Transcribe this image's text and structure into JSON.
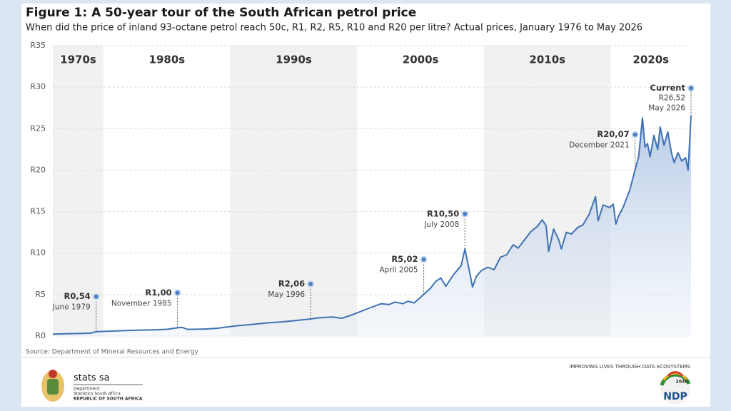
{
  "chart_data": {
    "type": "line",
    "title": "Figure 1: A 50-year tour of the South African petrol price",
    "subtitle": "When did the price of inland 93-octane petrol reach 50c, R1, R2, R5, R10 and R20 per litre? Actual prices, January 1976 to May 2026",
    "source": "Source: Department of Mineral Resources and Energy",
    "color": "#3f72b2",
    "xlim": [
      1976,
      2026.33
    ],
    "ylim": [
      0,
      35
    ],
    "yticks": [
      {
        "value": 0,
        "label": "R0"
      },
      {
        "value": 5,
        "label": "R5"
      },
      {
        "value": 10,
        "label": "R10"
      },
      {
        "value": 15,
        "label": "R15"
      },
      {
        "value": 20,
        "label": "R20"
      },
      {
        "value": 25,
        "label": "R25"
      },
      {
        "value": 30,
        "label": "R30"
      },
      {
        "value": 35,
        "label": "R35"
      }
    ],
    "grid": true,
    "decades": [
      {
        "label": "1970s",
        "start": 1976,
        "end": 1980
      },
      {
        "label": "1980s",
        "start": 1980,
        "end": 1990
      },
      {
        "label": "1990s",
        "start": 1990,
        "end": 2000
      },
      {
        "label": "2000s",
        "start": 2000,
        "end": 2010
      },
      {
        "label": "2010s",
        "start": 2010,
        "end": 2020
      },
      {
        "label": "2020s",
        "start": 2020,
        "end": 2026.33
      }
    ],
    "x": [
      1976.0,
      1977,
      1978,
      1979.0,
      1979.42,
      1980,
      1981,
      1982,
      1983,
      1984,
      1985.0,
      1985.83,
      1986.2,
      1986.6,
      1987,
      1988,
      1989,
      1990.5,
      1991,
      1992,
      1993,
      1994,
      1995,
      1996.33,
      1997,
      1998,
      1998.8,
      1999.5,
      2000,
      2001,
      2001.9,
      2002.5,
      2003,
      2003.6,
      2004,
      2004.5,
      2005.25,
      2005.8,
      2006.2,
      2006.6,
      2007,
      2007.6,
      2008.2,
      2008.5,
      2008.9,
      2009.1,
      2009.4,
      2009.8,
      2010.3,
      2010.8,
      2011.3,
      2011.8,
      2012.3,
      2012.7,
      2013.2,
      2013.7,
      2014.2,
      2014.6,
      2014.9,
      2015.1,
      2015.5,
      2015.9,
      2016.1,
      2016.5,
      2016.9,
      2017.4,
      2017.8,
      2018.3,
      2018.8,
      2019.0,
      2019.4,
      2019.9,
      2020.2,
      2020.4,
      2020.6,
      2021.0,
      2021.5,
      2021.92,
      2022.2,
      2022.5,
      2022.7,
      2022.9,
      2023.1,
      2023.4,
      2023.7,
      2023.9,
      2024.2,
      2024.5,
      2024.8,
      2025.0,
      2025.3,
      2025.6,
      2025.9,
      2026.1,
      2026.33
    ],
    "values": [
      0.24,
      0.28,
      0.31,
      0.35,
      0.54,
      0.56,
      0.62,
      0.68,
      0.72,
      0.76,
      0.82,
      1.0,
      1.05,
      0.82,
      0.82,
      0.85,
      0.95,
      1.25,
      1.3,
      1.45,
      1.6,
      1.7,
      1.85,
      2.06,
      2.2,
      2.3,
      2.15,
      2.5,
      2.8,
      3.4,
      3.9,
      3.8,
      4.1,
      3.9,
      4.2,
      4.0,
      5.02,
      5.8,
      6.6,
      7.0,
      6.0,
      7.4,
      8.5,
      10.5,
      7.5,
      5.9,
      7.2,
      7.9,
      8.3,
      8.0,
      9.5,
      9.8,
      11.0,
      10.6,
      11.6,
      12.6,
      13.2,
      14.0,
      13.3,
      10.2,
      12.9,
      11.6,
      10.5,
      12.5,
      12.3,
      13.1,
      13.4,
      14.7,
      16.8,
      13.9,
      15.8,
      15.5,
      15.9,
      13.5,
      14.4,
      15.6,
      17.6,
      20.07,
      21.6,
      26.3,
      22.8,
      23.2,
      21.6,
      24.2,
      22.5,
      25.2,
      23.0,
      24.6,
      22.0,
      20.9,
      22.1,
      21.1,
      21.5,
      20.0,
      26.52
    ],
    "annotations": [
      {
        "x": 1979.42,
        "value": 0.54,
        "value_label": "R0,54",
        "date": "June 1979"
      },
      {
        "x": 1985.83,
        "value": 1.0,
        "value_label": "R1,00",
        "date": "November 1985"
      },
      {
        "x": 1996.33,
        "value": 2.06,
        "value_label": "R2,06",
        "date": "May 1996"
      },
      {
        "x": 2005.25,
        "value": 5.02,
        "value_label": "R5,02",
        "date": "April 2005"
      },
      {
        "x": 2008.5,
        "value": 10.5,
        "value_label": "R10,50",
        "date": "July 2008"
      },
      {
        "x": 2021.92,
        "value": 20.07,
        "value_label": "R20,07",
        "date": "December 2021"
      },
      {
        "x": 2026.33,
        "value": 26.52,
        "value_label": "R26,52",
        "date": "May 2026",
        "title": "Current"
      }
    ]
  },
  "footer": {
    "org": "stats sa",
    "dept": "Department:",
    "dept_name": "Statistics South Africa",
    "country": "REPUBLIC OF SOUTH AFRICA",
    "slogan": "IMPROVING LIVES THROUGH DATA ECOSYSTEMS",
    "ndp_year": "2030",
    "ndp": "NDP"
  }
}
